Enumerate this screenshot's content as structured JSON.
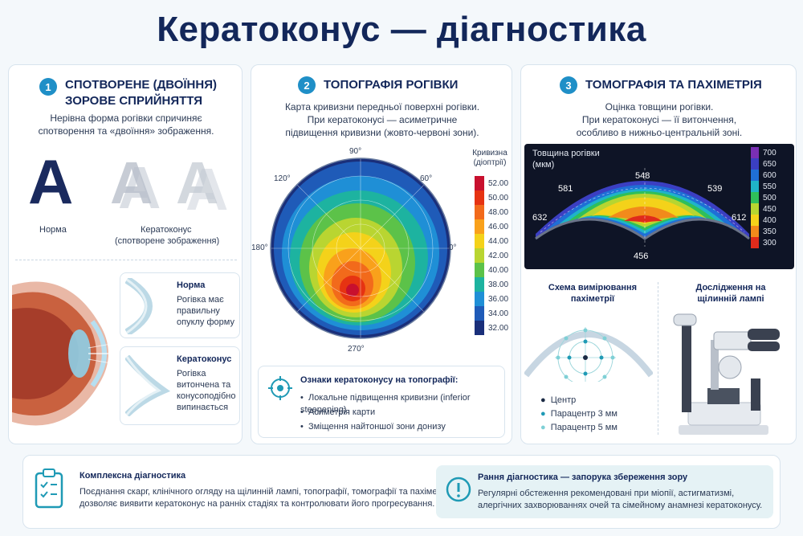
{
  "title": "Кератоконус — діагностика",
  "p1": {
    "num": "1",
    "title1": "Спотворене (двоїння)",
    "title2": "зорове сприйняття",
    "desc1": "Нерівна форма рогівки спричиняє",
    "desc2": "спотворення та «двоїння» зображення.",
    "letter": "A",
    "norm_label": "Норма",
    "kera_label1": "Кератоконус",
    "kera_label2": "(спотворене зображення)",
    "norm_title": "Норма",
    "norm_desc": [
      "Рогівка має",
      "правильну",
      "опуклу форму"
    ],
    "kera_title": "Кератоконус",
    "kera_desc": [
      "Рогівка",
      "витончена та",
      "конусоподібно",
      "випинається"
    ]
  },
  "p2": {
    "num": "2",
    "title": "Топографія рогівки",
    "desc": [
      "Карта кривизни передньої поверхні рогівки.",
      "При кератоконусі — асиметричне",
      "підвищення кривизни (жовто-червоні зони)."
    ],
    "angles": {
      "a90": "90°",
      "a60": "60°",
      "a120": "120°",
      "a180": "180°",
      "a0": "0°",
      "a270": "270°"
    },
    "legend_title1": "Кривизна",
    "legend_title2": "(діоптрії)",
    "signs_title": "Ознаки кератоконусу на топографії:",
    "signs": [
      "Локальне підвищення кривизни (inferior steepening)",
      "Асиметрія карти",
      "Зміщення найтоншої зони донизу"
    ]
  },
  "p3": {
    "num": "3",
    "title": "Томографія та пахіметрія",
    "desc": [
      "Оцінка товщини рогівки.",
      "При кератоконусі — її витончення,",
      "особливо в нижньо-центральній зоні."
    ],
    "map_title1": "Товщина рогівки",
    "map_title2": "(мкм)",
    "values": {
      "v548": "548",
      "v581": "581",
      "v539": "539",
      "v632": "632",
      "v612": "612",
      "v456": "456"
    },
    "scheme_title1": "Схема вимірювання",
    "scheme_title2": "пахіметрії",
    "slit_title1": "Дослідження на",
    "slit_title2": "щілинній лампі",
    "legend": [
      "Центр",
      "Парацентр 3 мм",
      "Парацентр 5 мм"
    ]
  },
  "bottom": {
    "left_title": "Комплексна діагностика",
    "left_desc1": "Поєднання скарг, клінічного огляду на щілинній лампі, топографії, томографії та пахіметрії",
    "left_desc2": "дозволяє виявити кератоконус на ранніх стадіях та контролювати його прогресування.",
    "right_title": "Рання діагностика — запорука збереження зору",
    "right_desc1": "Регулярні обстеження рекомендовані при міопії, астигматизмі,",
    "right_desc2": "алергічних захворюваннях очей та сімейному анамнезі кератоконусу."
  },
  "colors": {
    "curv_scale": [
      {
        "v": "52.00",
        "c": "#c8102e"
      },
      {
        "v": "50.00",
        "c": "#e63312"
      },
      {
        "v": "48.00",
        "c": "#f26a1b"
      },
      {
        "v": "46.00",
        "c": "#f9a11b"
      },
      {
        "v": "44.00",
        "c": "#f4d21a"
      },
      {
        "v": "42.00",
        "c": "#b9d531"
      },
      {
        "v": "40.00",
        "c": "#5cc249"
      },
      {
        "v": "38.00",
        "c": "#1db3a0"
      },
      {
        "v": "36.00",
        "c": "#1f8fd6"
      },
      {
        "v": "34.00",
        "c": "#1f5bb8"
      },
      {
        "v": "32.00",
        "c": "#1a2f7a"
      }
    ],
    "thick_scale": [
      {
        "v": "700",
        "c": "#7a2fb5"
      },
      {
        "v": "650",
        "c": "#3b3fc2"
      },
      {
        "v": "600",
        "c": "#1f6fd6"
      },
      {
        "v": "550",
        "c": "#1fb3c9"
      },
      {
        "v": "500",
        "c": "#2fbf5a"
      },
      {
        "v": "450",
        "c": "#b6d531"
      },
      {
        "v": "400",
        "c": "#f4d21a"
      },
      {
        "v": "350",
        "c": "#f28a1b"
      },
      {
        "v": "300",
        "c": "#e02b1b"
      }
    ]
  }
}
